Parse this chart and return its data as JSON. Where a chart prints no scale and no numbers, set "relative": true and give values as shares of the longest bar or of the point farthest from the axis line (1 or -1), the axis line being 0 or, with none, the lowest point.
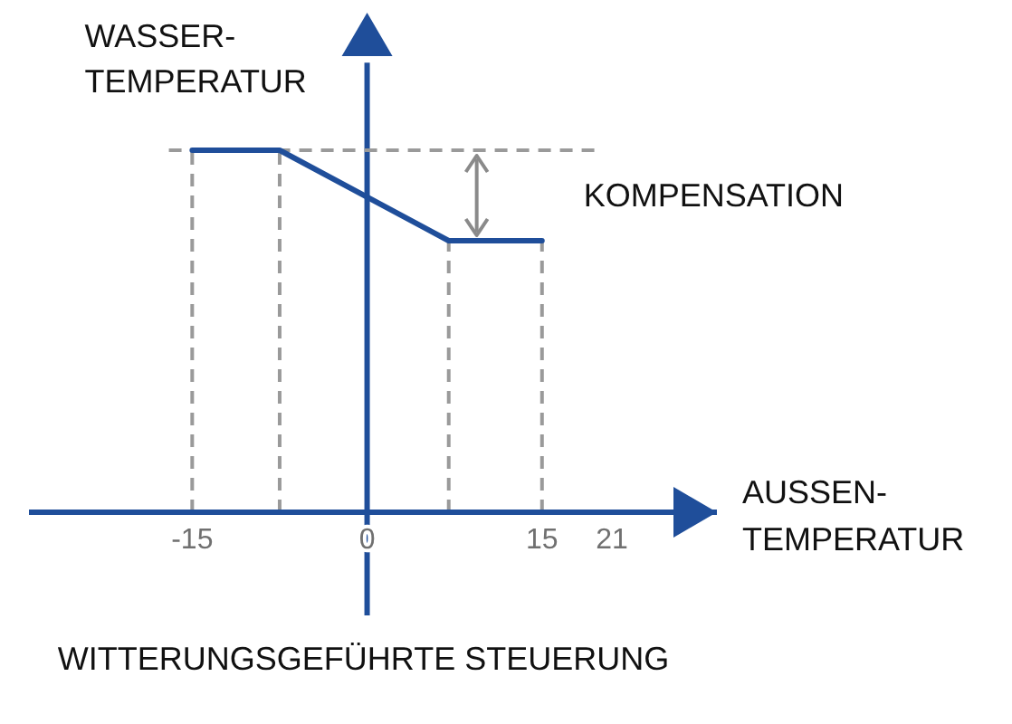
{
  "chart_data": {
    "type": "line",
    "title": "WITTERUNGSGEFÜHRTE STEUERUNG",
    "xlabel": "AUSSEN-\nTEMPERATUR",
    "ylabel": "WASSER-\nTEMPERATUR",
    "relative": true,
    "x": [
      -15,
      -7.5,
      7,
      15
    ],
    "series": [
      {
        "type": "line",
        "x": [
          -17,
          20
        ],
        "values": [
          1,
          1
        ],
        "color": "#9a9a9a",
        "line_style": "dashed"
      },
      {
        "color": "#1f4e9a",
        "values": [
          1,
          1,
          0.75,
          0.75
        ]
      }
    ],
    "xlim": [
      -29,
      30
    ],
    "xticks": [
      -15,
      0,
      15,
      21
    ],
    "line_style": "solid",
    "ref_lines": [
      {
        "axis": "x",
        "value": -15,
        "color": "#9a9a9a",
        "line_style": "dashed"
      },
      {
        "axis": "x",
        "value": -7.5,
        "color": "#9a9a9a",
        "line_style": "dashed"
      },
      {
        "axis": "x",
        "value": 7,
        "color": "#9a9a9a",
        "line_style": "dashed"
      },
      {
        "axis": "x",
        "value": 15,
        "color": "#9a9a9a",
        "line_style": "dashed"
      },
      {
        "axis": "x",
        "value": 0,
        "color": "#1f4e9a",
        "line_style": "solid"
      },
      {
        "axis": "y",
        "value": 0,
        "color": "#1f4e9a",
        "line_style": "solid"
      }
    ],
    "annotations": [
      "KOMPENSATION"
    ]
  }
}
